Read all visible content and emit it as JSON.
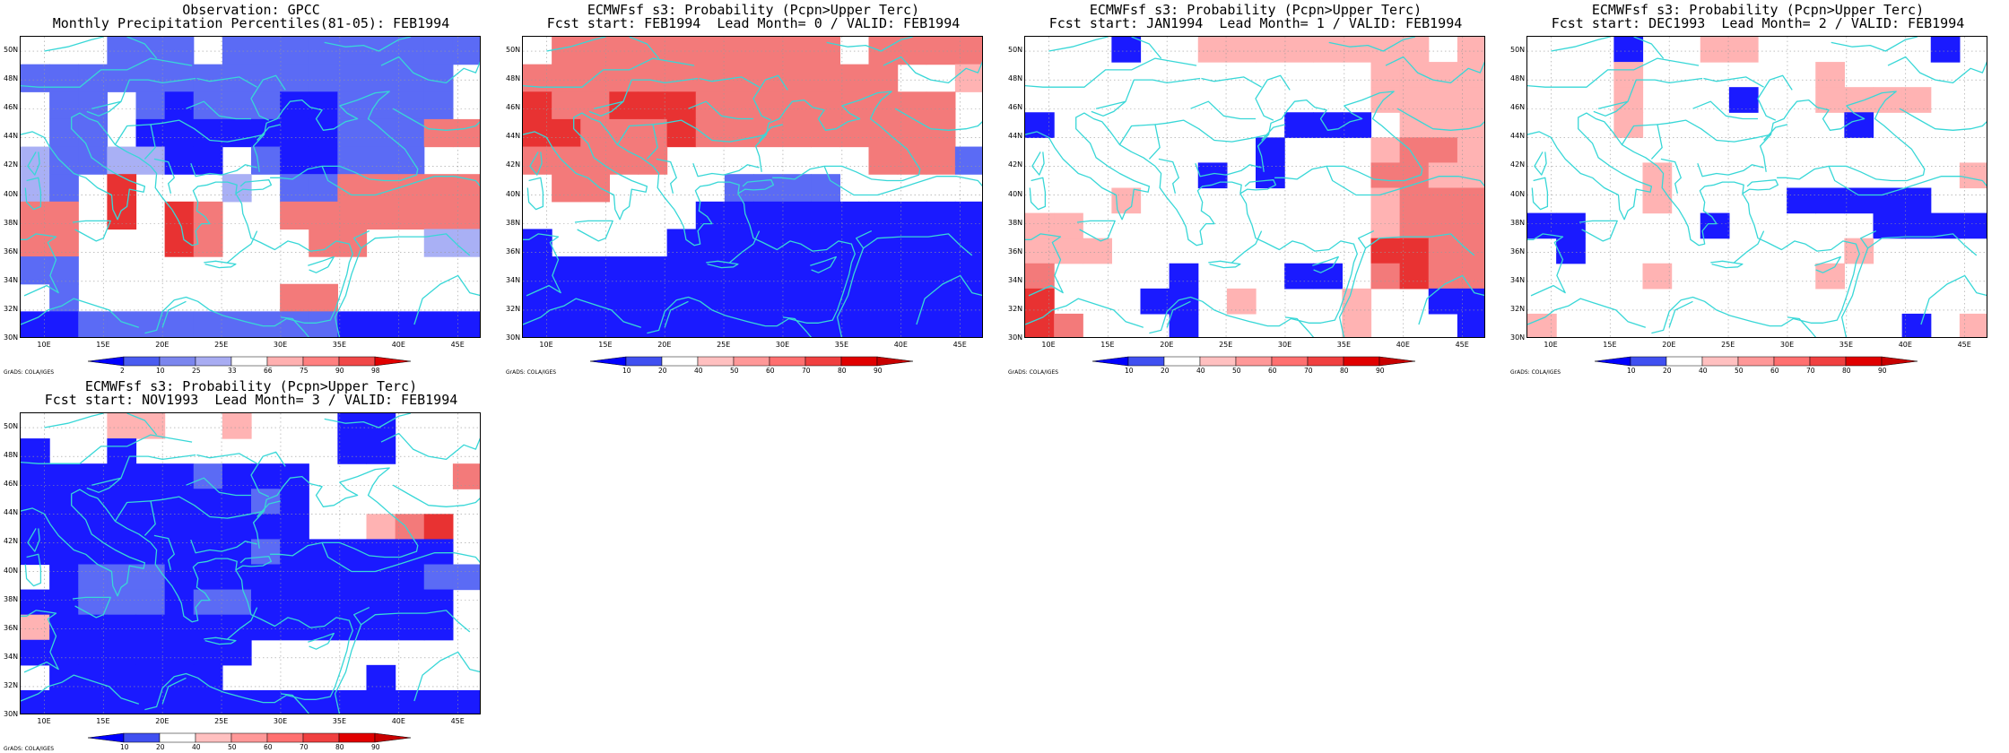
{
  "panels": [
    {
      "title_line1": "Observation: GPCC",
      "title_line2": "Monthly Precipitation Percentiles(81-05): FEB1994",
      "colorbar_labels": [
        "2",
        "10",
        "25",
        "33",
        "66",
        "75",
        "90",
        "98"
      ],
      "colorbar_colors": [
        "#0000ff",
        "#4a5cf0",
        "#7b86ee",
        "#a8acf2",
        "#ffffff",
        "#ffb0b0",
        "#ff8080",
        "#f04848",
        "#e00000"
      ],
      "cells": [
        "WWWbbbWbbbbbbbbb",
        "bbbbbbbbbbbbbbbW",
        "WbbWbBbbbBBbbbbW",
        "WbbWBBBBBBBbbbrr",
        "lbbllBBWbBBbbbWW",
        "lbWRWWWlWbbrrrrr",
        "rrWRWRrWWrrrrrrr",
        "rrWWWRrWWWrrWWll",
        "bbWWWWWWWWWWWWWW",
        "WbWWWWWWWrrWWWWW",
        "BBbbbbbbbbbBBBBB"
      ],
      "chart_data": {
        "type": "heatmap",
        "lon_range": [
          8,
          47
        ],
        "lat_range": [
          30,
          51
        ],
        "colorbar_thresholds": [
          2,
          10,
          25,
          33,
          66,
          75,
          90,
          98
        ]
      }
    },
    {
      "title_line1": "ECMWFsf s3: Probability (Pcpn>Upper Terc)",
      "title_line2": "Fcst start: FEB1994  Lead Month= 0 / VALID: FEB1994",
      "colorbar_labels": [
        "10",
        "20",
        "40",
        "50",
        "60",
        "70",
        "80",
        "90"
      ],
      "colorbar_colors": [
        "#0000ff",
        "#4050f0",
        "#ffffff",
        "#ffc0c0",
        "#ff9898",
        "#ff7070",
        "#f04040",
        "#e00000",
        "#c80000"
      ],
      "cells": [
        "WrrrrrrrrrrWrrrr",
        "rrrrrrrrrrrrrWWp",
        "RrrRRRrrrrrrrrrW",
        "RRrrrRrrrrrrrrrW",
        "rrrrrWWWWWWWrrrb",
        "WrrWWWWbbbbWWWWW",
        "WWWWWWBBBBBBBBBB",
        "BWWWWBBBBBBBBBBB",
        "BBBBBBBBBBBBBBBB",
        "BBBBBBBBBBBBBBBB",
        "BBBBBBBBBBBBBBBB"
      ],
      "chart_data": {
        "type": "heatmap",
        "lon_range": [
          8,
          47
        ],
        "lat_range": [
          30,
          51
        ],
        "colorbar_thresholds": [
          10,
          20,
          40,
          50,
          60,
          70,
          80,
          90
        ]
      }
    },
    {
      "title_line1": "ECMWFsf s3: Probability (Pcpn>Upper Terc)",
      "title_line2": "Fcst start: JAN1994  Lead Month= 1 / VALID: FEB1994",
      "colorbar_labels": [
        "10",
        "20",
        "40",
        "50",
        "60",
        "70",
        "80",
        "90"
      ],
      "colorbar_colors": [
        "#0000ff",
        "#4050f0",
        "#ffffff",
        "#ffc0c0",
        "#ff9898",
        "#ff7070",
        "#f04040",
        "#e00000",
        "#c80000"
      ],
      "cells": [
        "WWWBWWppppppppWp",
        "WWWWWWWWWWWWpppp",
        "WWWWWWWWWWWWpppp",
        "BWWWWWWWWBBBWppp",
        "WWWWWWWWBWWWprrp",
        "WWWWWWBWBWWWrrpp",
        "WWWpWWWWWWWWprrr",
        "ppWWWWWWWWWWprrr",
        "pppWWWWWWWWWRRrr",
        "rWWWWBWWWBBWrRrr",
        "RWWWBBWpWWWpWWBB",
        "RrWWWBWWWWWpWWWB"
      ],
      "chart_data": {
        "type": "heatmap",
        "lon_range": [
          8,
          47
        ],
        "lat_range": [
          30,
          51
        ],
        "colorbar_thresholds": [
          10,
          20,
          40,
          50,
          60,
          70,
          80,
          90
        ]
      }
    },
    {
      "title_line1": "ECMWFsf s3: Probability (Pcpn>Upper Terc)",
      "title_line2": "Fcst start: DEC1993  Lead Month= 2 / VALID: FEB1994",
      "colorbar_labels": [
        "10",
        "20",
        "40",
        "50",
        "60",
        "70",
        "80",
        "90"
      ],
      "colorbar_colors": [
        "#0000ff",
        "#4050f0",
        "#ffffff",
        "#ffc0c0",
        "#ff9898",
        "#ff7070",
        "#f04040",
        "#e00000",
        "#c80000"
      ],
      "cells": [
        "WWWBWWppWWWWWWBW",
        "WWWpWWWWWWpWWWWW",
        "WWWpWWWBWWppppWW",
        "WWWpWWWWWWWBWWWW",
        "WWWWWWWWWWWWWWWW",
        "WWWWpWWWWWWWWWWp",
        "WWWWpWWWWBBBBBWW",
        "BBWWWWBWWWWWBBBB",
        "WBWWWWWWWWWpWWWW",
        "WWWWpWWWWWpWWWWW",
        "WWWWWWWWWWWWWWWW",
        "pWWWWWWWWWWWWBWp"
      ],
      "chart_data": {
        "type": "heatmap",
        "lon_range": [
          8,
          47
        ],
        "lat_range": [
          30,
          51
        ],
        "colorbar_thresholds": [
          10,
          20,
          40,
          50,
          60,
          70,
          80,
          90
        ]
      }
    },
    {
      "title_line1": "ECMWFsf s3: Probability (Pcpn>Upper Terc)",
      "title_line2": "Fcst start: NOV1993  Lead Month= 3 / VALID: FEB1994",
      "colorbar_labels": [
        "10",
        "20",
        "40",
        "50",
        "60",
        "70",
        "80",
        "90"
      ],
      "colorbar_colors": [
        "#0000ff",
        "#4050f0",
        "#ffffff",
        "#ffc0c0",
        "#ff9898",
        "#ff7070",
        "#f04040",
        "#e00000",
        "#c80000"
      ],
      "cells": [
        "WWWppWWpWWWBBWWW",
        "BWWBWWWWWWWBBWWW",
        "BBBBBBbBBBWWWWWr",
        "BBBBBBBBbBWWWWWW",
        "BBBBBBBBBBWWprRW",
        "BBBBBBBBbBBBBBBW",
        "WBbbbBBBBBBBBBbb",
        "BBbbbBbbBBBBBBBW",
        "pBBBBBBBBBBBBBBW",
        "BBBBBBBBWWWWWWWW",
        "WBBBBBBWWWWWBWWW",
        "BBBBBBBBBBBBBBBB"
      ],
      "chart_data": {
        "type": "heatmap",
        "lon_range": [
          8,
          47
        ],
        "lat_range": [
          30,
          51
        ],
        "colorbar_thresholds": [
          10,
          20,
          40,
          50,
          60,
          70,
          80,
          90
        ]
      }
    }
  ],
  "lat_labels": [
    "50N",
    "48N",
    "46N",
    "44N",
    "42N",
    "40N",
    "38N",
    "36N",
    "34N",
    "32N",
    "30N"
  ],
  "lon_labels": [
    "10E",
    "15E",
    "20E",
    "25E",
    "30E",
    "35E",
    "40E",
    "45E"
  ],
  "credit": "GrADS: COLA/IGES",
  "palette": {
    "B": "#1a1aff",
    "b": "#5b6bf5",
    "l": "#a9b0f5",
    "W": "#ffffff",
    "p": "#ffb3b3",
    "r": "#f37a7a",
    "R": "#e83232",
    "coast": "#38d7d7",
    "grid": "#9a9a9a"
  }
}
